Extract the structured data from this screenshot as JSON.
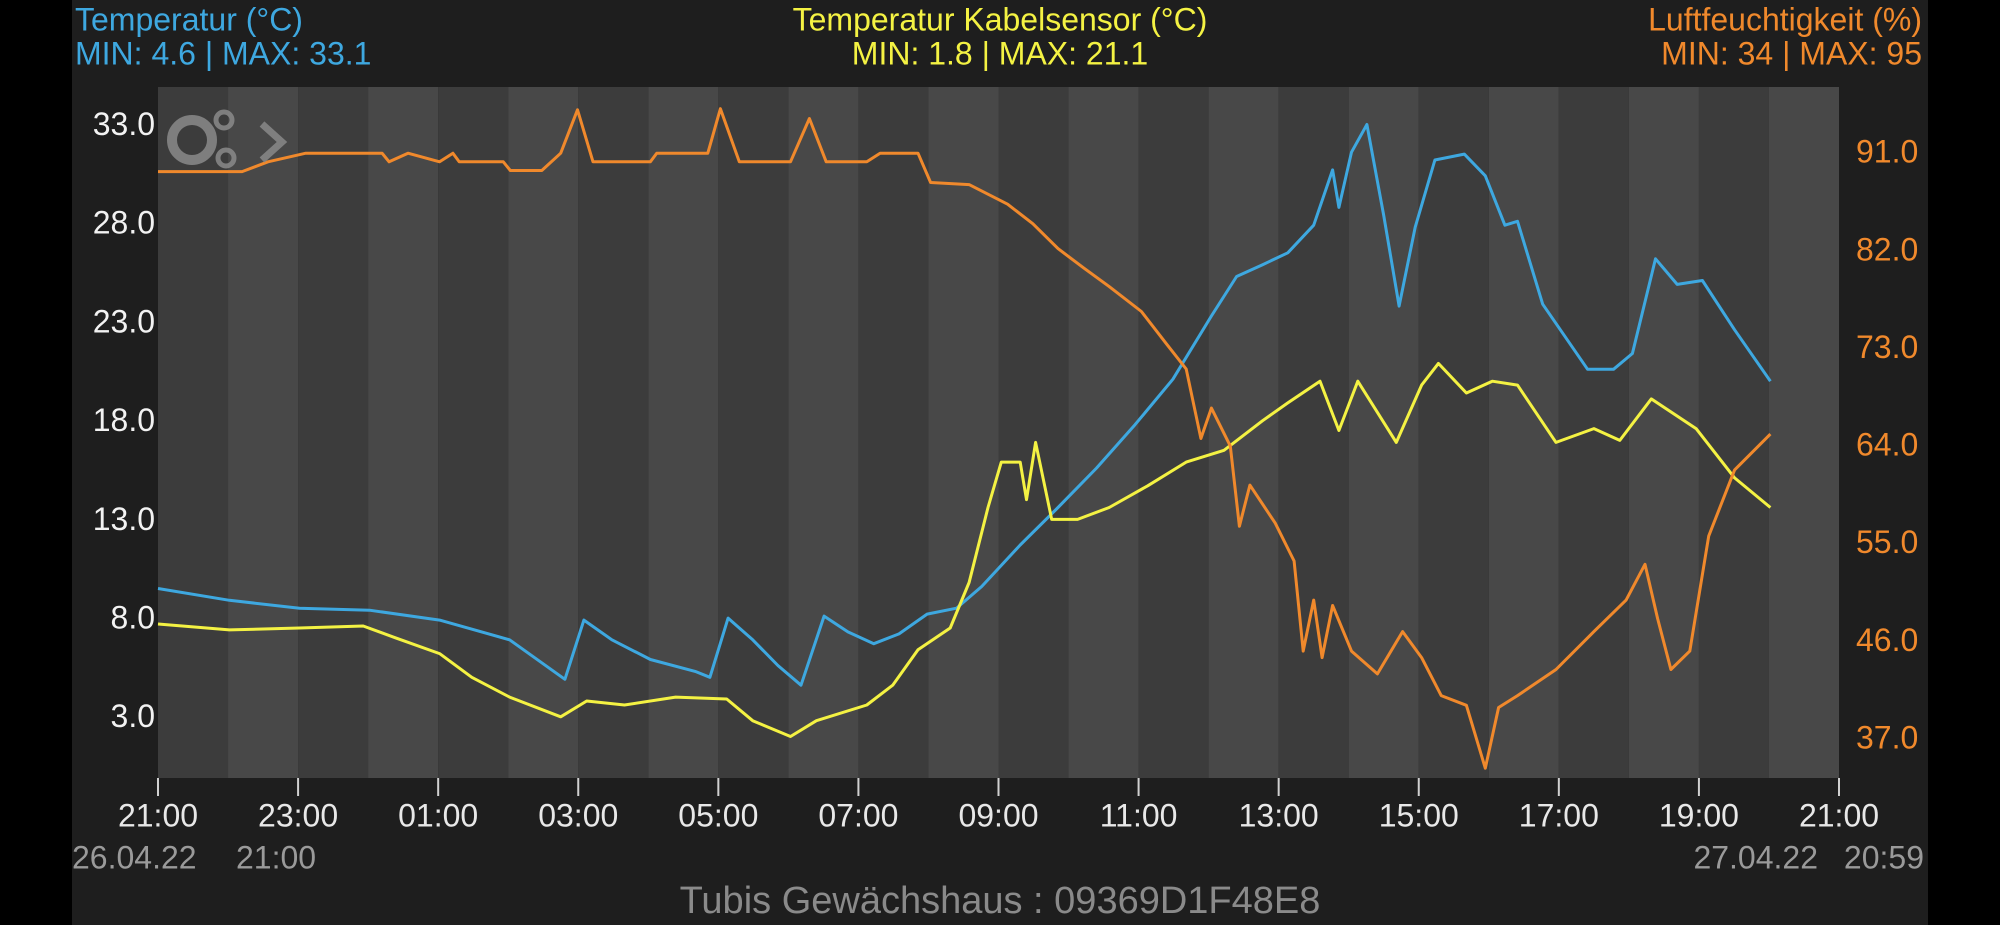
{
  "chart_data": {
    "type": "line",
    "footer": "Tubis Gewächshaus : 09369D1F48E8",
    "range_labels": {
      "start_date": "26.04.22",
      "start_time": "21:00",
      "end_date": "27.04.22",
      "end_time": "20:59"
    },
    "xlim": [
      0,
      24
    ],
    "xticks": [
      {
        "value": 0,
        "label": "21:00"
      },
      {
        "value": 2,
        "label": "23:00"
      },
      {
        "value": 4,
        "label": "01:00"
      },
      {
        "value": 6,
        "label": "03:00"
      },
      {
        "value": 8,
        "label": "05:00"
      },
      {
        "value": 10,
        "label": "07:00"
      },
      {
        "value": 12,
        "label": "09:00"
      },
      {
        "value": 14,
        "label": "11:00"
      },
      {
        "value": 16,
        "label": "13:00"
      },
      {
        "value": 18,
        "label": "15:00"
      },
      {
        "value": 20,
        "label": "17:00"
      },
      {
        "value": 22,
        "label": "19:00"
      },
      {
        "value": 24,
        "label": "21:00"
      }
    ],
    "ylim": [
      0,
      35
    ],
    "yticks": [
      {
        "value": 3,
        "label": "3.0"
      },
      {
        "value": 8,
        "label": "8.0"
      },
      {
        "value": 13,
        "label": "13.0"
      },
      {
        "value": 18,
        "label": "18.0"
      },
      {
        "value": 23,
        "label": "23.0"
      },
      {
        "value": 28,
        "label": "28.0"
      },
      {
        "value": 33,
        "label": "33.0"
      }
    ],
    "y2lim": [
      33.5,
      97.2
    ],
    "y2ticks": [
      {
        "value": 37,
        "label": "37.0"
      },
      {
        "value": 46,
        "label": "46.0"
      },
      {
        "value": 55,
        "label": "55.0"
      },
      {
        "value": 64,
        "label": "64.0"
      },
      {
        "value": 73,
        "label": "73.0"
      },
      {
        "value": 82,
        "label": "82.0"
      },
      {
        "value": 91,
        "label": "91.0"
      }
    ],
    "series": [
      {
        "name": "Temperatur (°C)",
        "stats": "MIN: 4.6 | MAX: 33.1",
        "color": "#3ea8e0",
        "axis": "y",
        "x": [
          0,
          1.02,
          2.02,
          3.02,
          4.02,
          5.02,
          5.81,
          6.08,
          6.48,
          7.03,
          7.67,
          7.88,
          8.14,
          8.49,
          8.85,
          9.18,
          9.51,
          9.85,
          10.22,
          10.58,
          10.98,
          11.4,
          11.76,
          12.31,
          12.85,
          13.4,
          13.95,
          14.49,
          15.04,
          15.4,
          15.77,
          16.13,
          16.5,
          16.77,
          16.86,
          17.04,
          17.26,
          17.5,
          17.72,
          17.95,
          18.23,
          18.65,
          18.95,
          19.23,
          19.41,
          19.77,
          20.41,
          20.78,
          21.05,
          21.38,
          21.69,
          22.05,
          22.51,
          23.02
        ],
        "values": [
          9.6,
          9.0,
          8.6,
          8.5,
          8.0,
          7.0,
          5.0,
          8.0,
          7.0,
          6.0,
          5.4,
          5.1,
          8.1,
          7.0,
          5.7,
          4.7,
          8.2,
          7.4,
          6.8,
          7.3,
          8.3,
          8.6,
          9.7,
          11.8,
          13.7,
          15.7,
          17.9,
          20.2,
          23.4,
          25.4,
          26.0,
          26.6,
          28.0,
          30.8,
          28.9,
          31.7,
          33.1,
          28.5,
          23.9,
          27.9,
          31.3,
          31.6,
          30.5,
          28.0,
          28.2,
          24.0,
          20.7,
          20.7,
          21.5,
          26.3,
          25.0,
          25.2,
          22.7,
          20.1
        ]
      },
      {
        "name": "Temperatur Kabelsensor (°C)",
        "stats": "MIN: 1.8 | MAX: 21.1",
        "color": "#f4f243",
        "axis": "y",
        "x": [
          0,
          1.02,
          2.02,
          2.93,
          3.39,
          4.02,
          4.48,
          5.02,
          5.75,
          6.12,
          6.66,
          7.39,
          8.12,
          8.49,
          9.03,
          9.4,
          10.12,
          10.49,
          10.85,
          11.31,
          11.58,
          11.85,
          12.04,
          12.31,
          12.4,
          12.53,
          12.76,
          13.13,
          13.58,
          14.13,
          14.68,
          15.22,
          15.77,
          16.13,
          16.59,
          16.86,
          17.13,
          17.68,
          18.04,
          18.28,
          18.68,
          19.05,
          19.41,
          19.96,
          20.5,
          20.87,
          21.32,
          21.96,
          22.51,
          23.02
        ],
        "values": [
          7.8,
          7.5,
          7.6,
          7.7,
          7.1,
          6.3,
          5.1,
          4.1,
          3.1,
          3.9,
          3.7,
          4.1,
          4.0,
          2.9,
          2.1,
          2.9,
          3.7,
          4.7,
          6.5,
          7.6,
          9.9,
          13.7,
          16.0,
          16.0,
          14.1,
          17.0,
          13.1,
          13.1,
          13.7,
          14.8,
          16.0,
          16.6,
          18.1,
          19.0,
          20.1,
          17.6,
          20.1,
          17.0,
          19.9,
          21.0,
          19.5,
          20.1,
          19.9,
          17.0,
          17.7,
          17.1,
          19.2,
          17.7,
          15.2,
          13.7
        ]
      },
      {
        "name": "Luftfeuchtigkeit (%)",
        "stats": "MIN: 34 | MAX: 95",
        "color": "#f0892c",
        "axis": "y2",
        "x": [
          0,
          1.2,
          1.57,
          2.11,
          3.2,
          3.3,
          3.57,
          4.02,
          4.21,
          4.3,
          4.93,
          5.03,
          5.48,
          5.75,
          5.99,
          6.21,
          7.03,
          7.12,
          7.85,
          8.03,
          8.3,
          9.03,
          9.3,
          9.54,
          10.12,
          10.31,
          10.85,
          11.03,
          11.58,
          12.13,
          12.49,
          12.85,
          13.22,
          13.58,
          14.04,
          14.4,
          14.68,
          14.89,
          15.04,
          15.31,
          15.44,
          15.59,
          15.95,
          16.22,
          16.35,
          16.5,
          16.62,
          16.77,
          17.04,
          17.41,
          17.77,
          18.04,
          18.32,
          18.68,
          18.95,
          19.14,
          19.41,
          19.96,
          20.5,
          20.96,
          21.23,
          21.41,
          21.6,
          21.87,
          22.14,
          22.51,
          23.02
        ],
        "values": [
          89.4,
          89.4,
          90.3,
          91.1,
          91.1,
          90.3,
          91.1,
          90.3,
          91.1,
          90.3,
          90.3,
          89.5,
          89.5,
          91.1,
          95.1,
          90.3,
          90.3,
          91.1,
          91.1,
          95.2,
          90.3,
          90.3,
          94.3,
          90.3,
          90.3,
          91.1,
          91.1,
          88.4,
          88.2,
          86.4,
          84.6,
          82.3,
          80.5,
          78.8,
          76.5,
          73.5,
          71.2,
          64.8,
          67.6,
          64.1,
          56.7,
          60.5,
          57.0,
          53.5,
          45.2,
          49.9,
          44.6,
          49.4,
          45.2,
          43.1,
          47.0,
          44.6,
          41.1,
          40.2,
          34.4,
          40.0,
          41.1,
          43.5,
          47.0,
          49.9,
          53.2,
          48.2,
          43.5,
          45.2,
          55.8,
          61.9,
          65.2
        ]
      }
    ]
  }
}
